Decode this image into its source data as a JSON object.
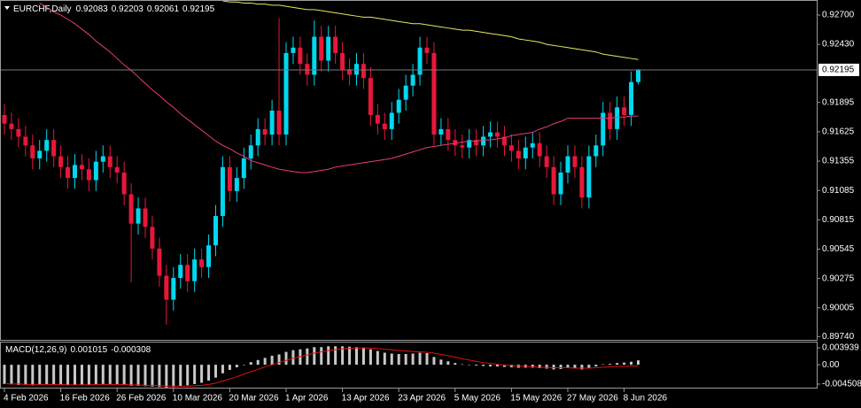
{
  "chart_data": [
    {
      "type": "candlestick",
      "title": "EURCHF,Daily",
      "categories": [
        "4 Feb 2026",
        null,
        null,
        null,
        null,
        null,
        null,
        null,
        "16 Feb 2026",
        null,
        null,
        null,
        null,
        null,
        null,
        null,
        "26 Feb 2026",
        null,
        null,
        null,
        null,
        null,
        null,
        null,
        "10 Mar 2026",
        null,
        null,
        null,
        null,
        null,
        null,
        null,
        "20 Mar 2026",
        null,
        null,
        null,
        null,
        null,
        null,
        null,
        "1 Apr 2026",
        null,
        null,
        null,
        null,
        null,
        null,
        null,
        "13 Apr 2026",
        null,
        null,
        null,
        null,
        null,
        null,
        null,
        "23 Apr 2026",
        null,
        null,
        null,
        null,
        null,
        null,
        null,
        "5 May 2026",
        null,
        null,
        null,
        null,
        null,
        null,
        null,
        "15 May 2026",
        null,
        null,
        null,
        null,
        null,
        null,
        null,
        "27 May 2026",
        null,
        null,
        null,
        null,
        null,
        null,
        null,
        "8 Jun 2026",
        null,
        null
      ],
      "open": [
        0.9178,
        0.917,
        0.9165,
        0.9158,
        0.915,
        0.9138,
        0.9145,
        0.9155,
        0.914,
        0.913,
        0.912,
        0.9132,
        0.9128,
        0.9118,
        0.9135,
        0.914,
        0.913,
        0.9125,
        0.9105,
        0.9078,
        0.9092,
        0.9075,
        0.9055,
        0.903,
        0.9008,
        0.9028,
        0.904,
        0.9025,
        0.9045,
        0.9038,
        0.9058,
        0.9085,
        0.913,
        0.9108,
        0.912,
        0.9138,
        0.915,
        0.9165,
        0.916,
        0.9182,
        0.916,
        0.9235,
        0.924,
        0.9225,
        0.9215,
        0.925,
        0.9228,
        0.925,
        0.9235,
        0.922,
        0.9215,
        0.9225,
        0.9212,
        0.9178,
        0.917,
        0.9165,
        0.918,
        0.9192,
        0.9205,
        0.9215,
        0.924,
        0.9235,
        0.916,
        0.9165,
        0.9155,
        0.915,
        0.9148,
        0.9155,
        0.915,
        0.9158,
        0.9162,
        0.9158,
        0.915,
        0.9145,
        0.9138,
        0.9148,
        0.9152,
        0.914,
        0.913,
        0.9105,
        0.9125,
        0.914,
        0.913,
        0.9102,
        0.914,
        0.915,
        0.918,
        0.9165,
        0.9185,
        0.9178,
        0.92083
      ],
      "high": [
        0.9188,
        0.918,
        0.9175,
        0.9168,
        0.916,
        0.9155,
        0.9165,
        0.9165,
        0.915,
        0.914,
        0.9142,
        0.9142,
        0.9138,
        0.9145,
        0.915,
        0.915,
        0.914,
        0.9135,
        0.9115,
        0.9102,
        0.9102,
        0.9085,
        0.9065,
        0.904,
        0.9038,
        0.905,
        0.905,
        0.9055,
        0.9055,
        0.9068,
        0.9095,
        0.914,
        0.914,
        0.913,
        0.9148,
        0.916,
        0.9175,
        0.9175,
        0.9192,
        0.9267,
        0.9245,
        0.925,
        0.925,
        0.9235,
        0.9265,
        0.926,
        0.926,
        0.926,
        0.9245,
        0.923,
        0.9235,
        0.9235,
        0.9222,
        0.9188,
        0.918,
        0.919,
        0.9202,
        0.9215,
        0.9225,
        0.925,
        0.925,
        0.9245,
        0.9175,
        0.9175,
        0.9165,
        0.916,
        0.9165,
        0.9165,
        0.9168,
        0.9172,
        0.9172,
        0.9168,
        0.916,
        0.9155,
        0.9158,
        0.9162,
        0.9162,
        0.915,
        0.914,
        0.9135,
        0.915,
        0.915,
        0.914,
        0.915,
        0.916,
        0.919,
        0.919,
        0.9195,
        0.9195,
        0.9218,
        0.92203
      ],
      "low": [
        0.916,
        0.9155,
        0.9148,
        0.914,
        0.9128,
        0.9128,
        0.9135,
        0.913,
        0.912,
        0.911,
        0.911,
        0.9118,
        0.9108,
        0.9108,
        0.9125,
        0.912,
        0.9115,
        0.9095,
        0.9024,
        0.9068,
        0.9065,
        0.9045,
        0.902,
        0.8985,
        0.8998,
        0.9018,
        0.9015,
        0.9015,
        0.9028,
        0.9028,
        0.9048,
        0.9075,
        0.9098,
        0.9098,
        0.911,
        0.9128,
        0.914,
        0.915,
        0.915,
        0.915,
        0.915,
        0.9225,
        0.9215,
        0.9205,
        0.9205,
        0.9218,
        0.9218,
        0.9225,
        0.921,
        0.9205,
        0.9205,
        0.9202,
        0.9168,
        0.916,
        0.9155,
        0.9155,
        0.917,
        0.9182,
        0.9195,
        0.9205,
        0.9225,
        0.915,
        0.915,
        0.9145,
        0.914,
        0.9138,
        0.9138,
        0.914,
        0.914,
        0.9148,
        0.9148,
        0.914,
        0.9135,
        0.9128,
        0.9128,
        0.9138,
        0.913,
        0.912,
        0.9095,
        0.9095,
        0.9115,
        0.912,
        0.9092,
        0.9092,
        0.913,
        0.914,
        0.9155,
        0.9155,
        0.9168,
        0.9168,
        0.92061
      ],
      "close": [
        0.917,
        0.9165,
        0.9158,
        0.915,
        0.9138,
        0.9145,
        0.9155,
        0.914,
        0.913,
        0.912,
        0.9132,
        0.9128,
        0.9118,
        0.9135,
        0.914,
        0.913,
        0.9125,
        0.9105,
        0.9078,
        0.9092,
        0.9075,
        0.9055,
        0.903,
        0.9008,
        0.9028,
        0.904,
        0.9025,
        0.9045,
        0.9038,
        0.9058,
        0.9085,
        0.913,
        0.9108,
        0.912,
        0.9138,
        0.915,
        0.9165,
        0.916,
        0.9182,
        0.916,
        0.9235,
        0.924,
        0.9225,
        0.9215,
        0.925,
        0.9228,
        0.925,
        0.9235,
        0.922,
        0.9215,
        0.9225,
        0.9212,
        0.9178,
        0.917,
        0.9165,
        0.918,
        0.9192,
        0.9205,
        0.9215,
        0.924,
        0.9235,
        0.916,
        0.9165,
        0.9155,
        0.915,
        0.9148,
        0.9155,
        0.915,
        0.9158,
        0.9162,
        0.9158,
        0.915,
        0.9145,
        0.9138,
        0.9148,
        0.9152,
        0.914,
        0.913,
        0.9105,
        0.9125,
        0.914,
        0.913,
        0.9102,
        0.914,
        0.915,
        0.918,
        0.9165,
        0.9185,
        0.9178,
        0.92083,
        0.92195
      ],
      "bull_color": "#00d8f0",
      "bear_color": "#e8173a",
      "price_line_color": "#7a7a7a",
      "series": [
        {
          "color": "#e8e85a",
          "values": [
            null,
            null,
            null,
            null,
            null,
            null,
            null,
            null,
            null,
            null,
            null,
            null,
            null,
            null,
            null,
            null,
            null,
            null,
            null,
            null,
            null,
            null,
            null,
            null,
            null,
            null,
            null,
            null,
            null,
            null,
            null,
            0.9283,
            0.9282,
            0.9282,
            0.9281,
            0.9281,
            0.928,
            0.928,
            0.9279,
            0.9279,
            0.9278,
            0.9277,
            0.9276,
            0.9275,
            0.9275,
            0.9274,
            0.9273,
            0.9272,
            0.9271,
            0.927,
            0.9269,
            0.9268,
            0.9268,
            0.9267,
            0.9266,
            0.9265,
            0.9264,
            0.9263,
            0.9262,
            0.9262,
            0.9261,
            0.926,
            0.9259,
            0.9258,
            0.9257,
            0.9256,
            0.9256,
            0.9255,
            0.9254,
            0.9253,
            0.9252,
            0.9251,
            0.925,
            0.9248,
            0.9247,
            0.9246,
            0.9245,
            0.9243,
            0.9242,
            0.9241,
            0.924,
            0.9239,
            0.9238,
            0.9237,
            0.9236,
            0.9234,
            0.9233,
            0.9232,
            0.9231,
            0.923,
            0.9229
          ]
        },
        {
          "color": "#e83c78",
          "values": [
            null,
            null,
            null,
            null,
            null,
            0.9281,
            0.9277,
            0.9273,
            0.927,
            0.9266,
            0.9262,
            0.9257,
            0.9252,
            0.9246,
            0.9241,
            0.9236,
            0.923,
            0.9224,
            0.9219,
            0.9213,
            0.9207,
            0.9201,
            0.9196,
            0.919,
            0.9185,
            0.9179,
            0.9174,
            0.9169,
            0.9164,
            0.9159,
            0.9154,
            0.915,
            0.9147,
            0.9143,
            0.914,
            0.9136,
            0.9134,
            0.9132,
            0.913,
            0.9128,
            0.9127,
            0.9126,
            0.9125,
            0.9125,
            0.9126,
            0.9127,
            0.9128,
            0.913,
            0.9131,
            0.9132,
            0.9133,
            0.9134,
            0.9135,
            0.9136,
            0.9137,
            0.9138,
            0.914,
            0.9142,
            0.9144,
            0.9146,
            0.9148,
            0.9149,
            0.915,
            0.9151,
            0.9152,
            0.9153,
            0.9154,
            0.9154,
            0.9155,
            0.9155,
            0.9156,
            0.9157,
            0.9159,
            0.916,
            0.9161,
            0.9162,
            0.9165,
            0.9167,
            0.917,
            0.9172,
            0.9175,
            0.9175,
            0.9175,
            0.9175,
            0.9175,
            0.9175,
            0.9175,
            0.9176,
            0.9176,
            0.9177,
            0.9177
          ]
        }
      ],
      "ylim": [
        0.8971,
        0.9283
      ],
      "yticks": [
        {
          "value": 0.927,
          "label": "0.92700"
        },
        {
          "value": 0.9243,
          "label": "0.92430"
        },
        {
          "value": 0.91895,
          "label": "0.91895"
        },
        {
          "value": 0.91625,
          "label": "0.91625"
        },
        {
          "value": 0.91355,
          "label": "0.91355"
        },
        {
          "value": 0.91085,
          "label": "0.91085"
        },
        {
          "value": 0.90815,
          "label": "0.90815"
        },
        {
          "value": 0.90545,
          "label": "0.90545"
        },
        {
          "value": 0.90275,
          "label": "0.90275"
        },
        {
          "value": 0.90005,
          "label": "0.90005"
        },
        {
          "value": 0.8974,
          "label": "0.89740"
        }
      ]
    },
    {
      "type": "macd",
      "title": "MACD(12,26,9)",
      "color": "#c8c8c8",
      "values": [
        -0.0045,
        -0.0046,
        -0.0047,
        -0.0047,
        -0.0048,
        -0.0047,
        -0.0046,
        -0.0046,
        -0.0047,
        -0.0048,
        -0.0047,
        -0.0046,
        -0.0047,
        -0.0046,
        -0.0045,
        -0.0045,
        -0.0046,
        -0.0047,
        -0.0049,
        -0.0049,
        -0.005,
        -0.0051,
        -0.0052,
        -0.0053,
        -0.0052,
        -0.005,
        -0.0048,
        -0.0045,
        -0.0042,
        -0.0037,
        -0.003,
        -0.002,
        -0.0012,
        -0.0006,
        0.0,
        0.0006,
        0.0011,
        0.0016,
        0.0021,
        0.0024,
        0.003,
        0.0034,
        0.0036,
        0.0038,
        0.0041,
        0.0041,
        0.0043,
        0.0043,
        0.0043,
        0.0042,
        0.0041,
        0.004,
        0.0036,
        0.0032,
        0.0028,
        0.0026,
        0.0025,
        0.0025,
        0.0026,
        0.0028,
        0.0027,
        0.0018,
        0.0012,
        0.0008,
        0.0004,
        0.0001,
        -0.0001,
        -0.0002,
        -0.0003,
        -0.0004,
        -0.0004,
        -0.0005,
        -0.0006,
        -0.0007,
        -0.0007,
        -0.0007,
        -0.0008,
        -0.0009,
        -0.0011,
        -0.001,
        -0.0008,
        -0.0009,
        -0.0011,
        -0.0008,
        -0.0004,
        0.0001,
        0.0002,
        0.0004,
        0.0005,
        0.0007,
        0.001015
      ],
      "series": [
        {
          "color": "#e01010",
          "values": [
            -0.0044,
            -0.0045,
            -0.0045,
            -0.0046,
            -0.0046,
            -0.0046,
            -0.0046,
            -0.0046,
            -0.0046,
            -0.0047,
            -0.0047,
            -0.0047,
            -0.0047,
            -0.0046,
            -0.0046,
            -0.0046,
            -0.0046,
            -0.0046,
            -0.0047,
            -0.0047,
            -0.0048,
            -0.0048,
            -0.0049,
            -0.005,
            -0.005,
            -0.005,
            -0.005,
            -0.0049,
            -0.0048,
            -0.0046,
            -0.0043,
            -0.0038,
            -0.0033,
            -0.0028,
            -0.0022,
            -0.0016,
            -0.0011,
            -0.0005,
            0.0,
            0.0005,
            0.001,
            0.0015,
            0.0019,
            0.0023,
            0.0027,
            0.003,
            0.0033,
            0.0035,
            0.0037,
            0.0038,
            0.0039,
            0.0039,
            0.0039,
            0.0038,
            0.0036,
            0.0035,
            0.0033,
            0.0032,
            0.0031,
            0.003,
            0.0029,
            0.0027,
            0.0024,
            0.0021,
            0.0018,
            0.0014,
            0.0011,
            0.0008,
            0.0005,
            0.0003,
            0.0001,
            -0.0001,
            -0.0002,
            -0.0003,
            -0.0004,
            -0.0005,
            -0.0006,
            -0.0006,
            -0.0007,
            -0.0007,
            -0.0007,
            -0.0008,
            -0.0008,
            -0.0008,
            -0.0007,
            -0.0006,
            -0.0005,
            -0.0004,
            -0.0004,
            -0.0003,
            -0.000308
          ]
        }
      ],
      "ylim": [
        -0.00534,
        0.00518
      ],
      "yticks": [
        0.003939,
        {
          "value": 0,
          "label": "0.00"
        },
        -0.004508
      ]
    }
  ]
}
